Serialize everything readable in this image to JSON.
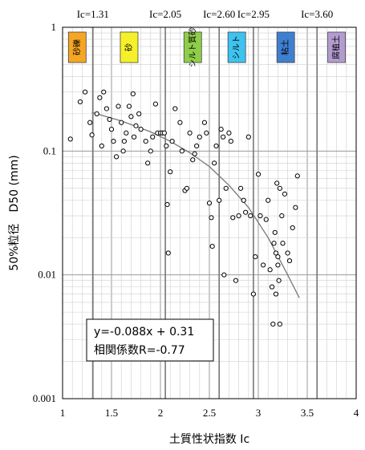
{
  "chart_data": {
    "type": "scatter",
    "title": "",
    "xlabel": "土質性状指数 Ic",
    "ylabel": "50%粒径　D50 (mm)",
    "xlim": [
      1,
      4
    ],
    "ylim": [
      0.001,
      1
    ],
    "y_scale": "log",
    "grid": true,
    "x_ticks": [
      "1",
      "1.5",
      "2",
      "2.5",
      "3",
      "3.5",
      "4"
    ],
    "y_ticks": [
      {
        "value": 1,
        "label": "1"
      },
      {
        "value": 0.1,
        "label": "0.1"
      },
      {
        "value": 0.01,
        "label": "0.01"
      },
      {
        "value": 0.001,
        "label": "0.001"
      }
    ],
    "boundaries": [
      {
        "x": 1.31,
        "label": "Ic=1.31"
      },
      {
        "x": 2.05,
        "label": "Ic=2.05"
      },
      {
        "x": 2.6,
        "label": "Ic=2.60"
      },
      {
        "x": 2.95,
        "label": "Ic=2.95"
      },
      {
        "x": 3.6,
        "label": "Ic=3.60"
      }
    ],
    "zones": [
      {
        "label": "砂礫",
        "x": 1.15,
        "color": "#f5a623"
      },
      {
        "label": "砂",
        "x": 1.68,
        "color": "#f6f02a"
      },
      {
        "label": "シルト質砂",
        "x": 2.33,
        "color": "#8fce4a"
      },
      {
        "label": "シルト",
        "x": 2.78,
        "color": "#3ec3f0"
      },
      {
        "label": "粘土",
        "x": 3.28,
        "color": "#3f7fd0"
      },
      {
        "label": "腐植土",
        "x": 3.8,
        "color": "#b39bd0"
      }
    ],
    "annotation": {
      "line1": "y=-0.088x + 0.31",
      "line2": "相関係数R=-0.77"
    },
    "series": [
      {
        "type": "scatter",
        "points": [
          [
            1.08,
            0.125
          ],
          [
            1.18,
            0.25
          ],
          [
            1.23,
            0.3
          ],
          [
            1.28,
            0.17
          ],
          [
            1.3,
            0.135
          ],
          [
            1.35,
            0.2
          ],
          [
            1.38,
            0.27
          ],
          [
            1.4,
            0.11
          ],
          [
            1.42,
            0.3
          ],
          [
            1.45,
            0.22
          ],
          [
            1.48,
            0.18
          ],
          [
            1.5,
            0.15
          ],
          [
            1.52,
            0.12
          ],
          [
            1.55,
            0.09
          ],
          [
            1.57,
            0.23
          ],
          [
            1.6,
            0.17
          ],
          [
            1.62,
            0.1
          ],
          [
            1.63,
            0.12
          ],
          [
            1.65,
            0.14
          ],
          [
            1.68,
            0.23
          ],
          [
            1.7,
            0.19
          ],
          [
            1.72,
            0.29
          ],
          [
            1.73,
            0.13
          ],
          [
            1.75,
            0.16
          ],
          [
            1.78,
            0.2
          ],
          [
            1.8,
            0.15
          ],
          [
            1.85,
            0.12
          ],
          [
            1.87,
            0.08
          ],
          [
            1.9,
            0.1
          ],
          [
            1.92,
            0.13
          ],
          [
            1.95,
            0.24
          ],
          [
            1.97,
            0.14
          ],
          [
            2.0,
            0.14
          ],
          [
            2.02,
            0.14
          ],
          [
            2.04,
            0.14
          ],
          [
            2.06,
            0.11
          ],
          [
            2.07,
            0.037
          ],
          [
            2.08,
            0.015
          ],
          [
            2.1,
            0.068
          ],
          [
            2.12,
            0.12
          ],
          [
            2.15,
            0.22
          ],
          [
            2.2,
            0.17
          ],
          [
            2.22,
            0.1
          ],
          [
            2.25,
            0.048
          ],
          [
            2.27,
            0.05
          ],
          [
            2.3,
            0.14
          ],
          [
            2.33,
            0.085
          ],
          [
            2.35,
            0.095
          ],
          [
            2.37,
            0.11
          ],
          [
            2.4,
            0.13
          ],
          [
            2.45,
            0.17
          ],
          [
            2.47,
            0.14
          ],
          [
            2.5,
            0.038
          ],
          [
            2.52,
            0.029
          ],
          [
            2.53,
            0.017
          ],
          [
            2.55,
            0.08
          ],
          [
            2.57,
            0.11
          ],
          [
            2.6,
            0.04
          ],
          [
            2.62,
            0.15
          ],
          [
            2.64,
            0.13
          ],
          [
            2.65,
            0.01
          ],
          [
            2.67,
            0.05
          ],
          [
            2.7,
            0.14
          ],
          [
            2.72,
            0.12
          ],
          [
            2.74,
            0.029
          ],
          [
            2.77,
            0.009
          ],
          [
            2.8,
            0.03
          ],
          [
            2.82,
            0.05
          ],
          [
            2.85,
            0.04
          ],
          [
            2.87,
            0.032
          ],
          [
            2.9,
            0.13
          ],
          [
            2.92,
            0.03
          ],
          [
            2.95,
            0.007
          ],
          [
            2.97,
            0.014
          ],
          [
            3.0,
            0.065
          ],
          [
            3.02,
            0.03
          ],
          [
            3.05,
            0.012
          ],
          [
            3.08,
            0.028
          ],
          [
            3.1,
            0.04
          ],
          [
            3.12,
            0.011
          ],
          [
            3.14,
            0.008
          ],
          [
            3.15,
            0.004
          ],
          [
            3.16,
            0.018
          ],
          [
            3.17,
            0.022
          ],
          [
            3.18,
            0.015
          ],
          [
            3.19,
            0.055
          ],
          [
            3.2,
            0.014
          ],
          [
            3.21,
            0.009
          ],
          [
            3.22,
            0.004
          ],
          [
            3.24,
            0.03
          ],
          [
            3.25,
            0.018
          ],
          [
            3.27,
            0.045
          ],
          [
            3.3,
            0.015
          ],
          [
            3.32,
            0.013
          ],
          [
            3.35,
            0.024
          ],
          [
            3.38,
            0.035
          ],
          [
            3.4,
            0.063
          ],
          [
            3.22,
            0.05
          ],
          [
            3.2,
            0.012
          ],
          [
            3.18,
            0.007
          ]
        ]
      },
      {
        "type": "trendline",
        "points": [
          [
            1.3,
            0.205
          ],
          [
            1.6,
            0.175
          ],
          [
            1.9,
            0.143
          ],
          [
            2.1,
            0.12
          ],
          [
            2.3,
            0.097
          ],
          [
            2.5,
            0.075
          ],
          [
            2.7,
            0.053
          ],
          [
            2.9,
            0.035
          ],
          [
            3.1,
            0.02
          ],
          [
            3.3,
            0.01
          ],
          [
            3.42,
            0.0065
          ]
        ]
      }
    ]
  }
}
